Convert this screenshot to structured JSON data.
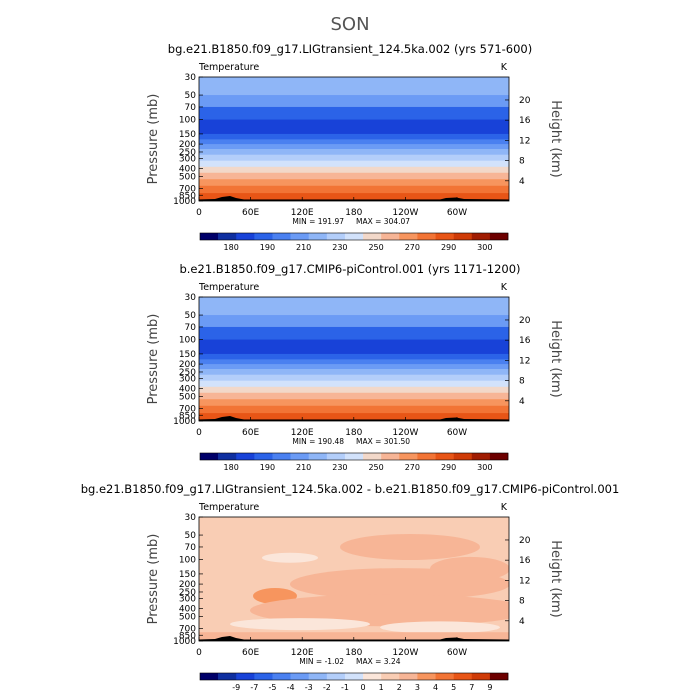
{
  "figure": {
    "title": "SON"
  },
  "chart_data": [
    {
      "type": "heatmap",
      "title": "bg.e21.B1850.f09_g17.LIGtransient_124.5ka.002 (yrs 571-600)",
      "left_label": "Temperature",
      "units": "K",
      "ylabel": "Pressure (mb)",
      "right_ylabel": "Height (km)",
      "xticks": [
        "0",
        "60E",
        "120E",
        "180",
        "120W",
        "60W"
      ],
      "yticks": [
        "30",
        "50",
        "70",
        "100",
        "150",
        "200",
        "250",
        "300",
        "400",
        "500",
        "700",
        "850",
        "1000"
      ],
      "right_ticks": [
        "20",
        "16",
        "12",
        "8",
        "4"
      ],
      "min_label": "MIN = 191.97",
      "max_label": "MAX = 304.07",
      "colorbar_labels": [
        "180",
        "190",
        "210",
        "230",
        "250",
        "270",
        "290",
        "300"
      ],
      "colorbar_colors": [
        "#000069",
        "#0e2fa0",
        "#1842d8",
        "#2b63e8",
        "#4a80f0",
        "#6b9bf5",
        "#8fb6f7",
        "#b3cefa",
        "#d2e2fb",
        "#f2d8c9",
        "#f7b596",
        "#f7955e",
        "#f27435",
        "#e85516",
        "#cf3b07",
        "#a01c02",
        "#6d0000"
      ],
      "bands": [
        {
          "p": 30,
          "color": "#8fb6f7"
        },
        {
          "p": 50,
          "color": "#6b9bf5"
        },
        {
          "p": 70,
          "color": "#2b63e8"
        },
        {
          "p": 100,
          "color": "#1842d8"
        },
        {
          "p": 150,
          "color": "#2b63e8"
        },
        {
          "p": 175,
          "color": "#4a80f0"
        },
        {
          "p": 200,
          "color": "#6b9bf5"
        },
        {
          "p": 230,
          "color": "#8fb6f7"
        },
        {
          "p": 270,
          "color": "#b3cefa"
        },
        {
          "p": 320,
          "color": "#d2e2fb"
        },
        {
          "p": 380,
          "color": "#f2d8c9"
        },
        {
          "p": 450,
          "color": "#f7b596"
        },
        {
          "p": 540,
          "color": "#f7955e"
        },
        {
          "p": 650,
          "color": "#f27435"
        },
        {
          "p": 800,
          "color": "#e85516"
        },
        {
          "p": 950,
          "color": "#cf3b07"
        }
      ]
    },
    {
      "type": "heatmap",
      "title": "b.e21.B1850.f09_g17.CMIP6-piControl.001 (yrs 1171-1200)",
      "left_label": "Temperature",
      "units": "K",
      "ylabel": "Pressure (mb)",
      "right_ylabel": "Height (km)",
      "xticks": [
        "0",
        "60E",
        "120E",
        "180",
        "120W",
        "60W"
      ],
      "yticks": [
        "30",
        "50",
        "70",
        "100",
        "150",
        "200",
        "250",
        "300",
        "400",
        "500",
        "700",
        "850",
        "1000"
      ],
      "right_ticks": [
        "20",
        "16",
        "12",
        "8",
        "4"
      ],
      "min_label": "MIN = 190.48",
      "max_label": "MAX = 301.50",
      "colorbar_labels": [
        "180",
        "190",
        "210",
        "230",
        "250",
        "270",
        "290",
        "300"
      ],
      "colorbar_colors": [
        "#000069",
        "#0e2fa0",
        "#1842d8",
        "#2b63e8",
        "#4a80f0",
        "#6b9bf5",
        "#8fb6f7",
        "#b3cefa",
        "#d2e2fb",
        "#f2d8c9",
        "#f7b596",
        "#f7955e",
        "#f27435",
        "#e85516",
        "#cf3b07",
        "#a01c02",
        "#6d0000"
      ],
      "bands": [
        {
          "p": 30,
          "color": "#8fb6f7"
        },
        {
          "p": 50,
          "color": "#6b9bf5"
        },
        {
          "p": 70,
          "color": "#2b63e8"
        },
        {
          "p": 100,
          "color": "#1842d8"
        },
        {
          "p": 150,
          "color": "#2b63e8"
        },
        {
          "p": 175,
          "color": "#4a80f0"
        },
        {
          "p": 200,
          "color": "#6b9bf5"
        },
        {
          "p": 230,
          "color": "#8fb6f7"
        },
        {
          "p": 270,
          "color": "#b3cefa"
        },
        {
          "p": 320,
          "color": "#d2e2fb"
        },
        {
          "p": 380,
          "color": "#f2d8c9"
        },
        {
          "p": 450,
          "color": "#f7b596"
        },
        {
          "p": 540,
          "color": "#f7955e"
        },
        {
          "p": 650,
          "color": "#f27435"
        },
        {
          "p": 800,
          "color": "#e85516"
        },
        {
          "p": 950,
          "color": "#cf3b07"
        }
      ]
    },
    {
      "type": "heatmap",
      "title": "bg.e21.B1850.f09_g17.LIGtransient_124.5ka.002 - b.e21.B1850.f09_g17.CMIP6-piControl.001",
      "left_label": "Temperature",
      "units": "K",
      "ylabel": "Pressure (mb)",
      "right_ylabel": "Height (km)",
      "xticks": [
        "0",
        "60E",
        "120E",
        "180",
        "120W",
        "60W"
      ],
      "yticks": [
        "30",
        "50",
        "70",
        "100",
        "150",
        "200",
        "250",
        "300",
        "400",
        "500",
        "700",
        "850",
        "1000"
      ],
      "right_ticks": [
        "20",
        "16",
        "12",
        "8",
        "4"
      ],
      "min_label": "MIN = -1.02",
      "max_label": "MAX = 3.24",
      "colorbar_labels": [
        "-9",
        "-7",
        "-5",
        "-4",
        "-3",
        "-2",
        "-1",
        "0",
        "1",
        "2",
        "3",
        "4",
        "5",
        "7",
        "9"
      ],
      "colorbar_colors": [
        "#000069",
        "#0e2fa0",
        "#1842d8",
        "#2b63e8",
        "#4a80f0",
        "#6b9bf5",
        "#8fb6f7",
        "#b3cefa",
        "#d2e2fb",
        "#fbe6da",
        "#f9cdb4",
        "#f7b596",
        "#f7955e",
        "#f27435",
        "#e85516",
        "#cf3b07",
        "#6d0000"
      ],
      "bands": [
        {
          "p": 30,
          "color": "#f9cdb4"
        }
      ]
    }
  ]
}
